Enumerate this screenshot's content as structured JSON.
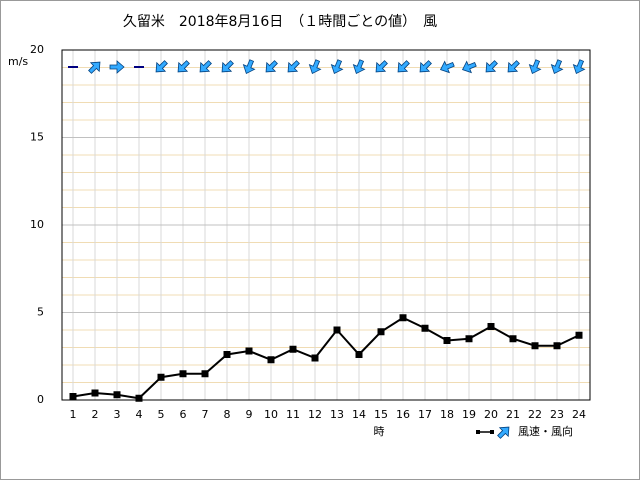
{
  "chart_data": {
    "type": "line",
    "title": "久留米　2018年8月16日　（１時間ごとの値）　風",
    "y_label": "m/s",
    "x_label": "時",
    "x": [
      1,
      2,
      3,
      4,
      5,
      6,
      7,
      8,
      9,
      10,
      11,
      12,
      13,
      14,
      15,
      16,
      17,
      18,
      19,
      20,
      21,
      22,
      23,
      24
    ],
    "xlim": [
      0.5,
      24.5
    ],
    "xticks": [
      1,
      2,
      3,
      4,
      5,
      6,
      7,
      8,
      9,
      10,
      11,
      12,
      13,
      14,
      15,
      16,
      17,
      18,
      19,
      20,
      21,
      22,
      23,
      24
    ],
    "ylim": [
      0,
      20
    ],
    "yticks": [
      0,
      5,
      10,
      15,
      20
    ],
    "minor_yticks": [
      1,
      2,
      3,
      4,
      6,
      7,
      8,
      9,
      11,
      12,
      13,
      14,
      16,
      17,
      18,
      19
    ],
    "grid": true,
    "legend": "bottom-right",
    "series": [
      {
        "name": "風速・風向",
        "color": "#000000",
        "arrow_color": "#33aaff",
        "values": [
          0.2,
          0.4,
          0.3,
          0.1,
          1.3,
          1.5,
          1.5,
          2.6,
          2.8,
          2.3,
          2.9,
          2.4,
          4.0,
          2.6,
          3.9,
          4.7,
          4.1,
          3.4,
          3.5,
          4.2,
          3.5,
          3.1,
          3.1,
          3.7
        ],
        "directions": [
          null,
          45,
          90,
          null,
          225,
          225,
          225,
          225,
          202.5,
          225,
          225,
          202.5,
          202.5,
          202.5,
          225,
          225,
          225,
          247.5,
          247.5,
          225,
          225,
          202.5,
          202.5,
          202.5
        ]
      }
    ]
  }
}
